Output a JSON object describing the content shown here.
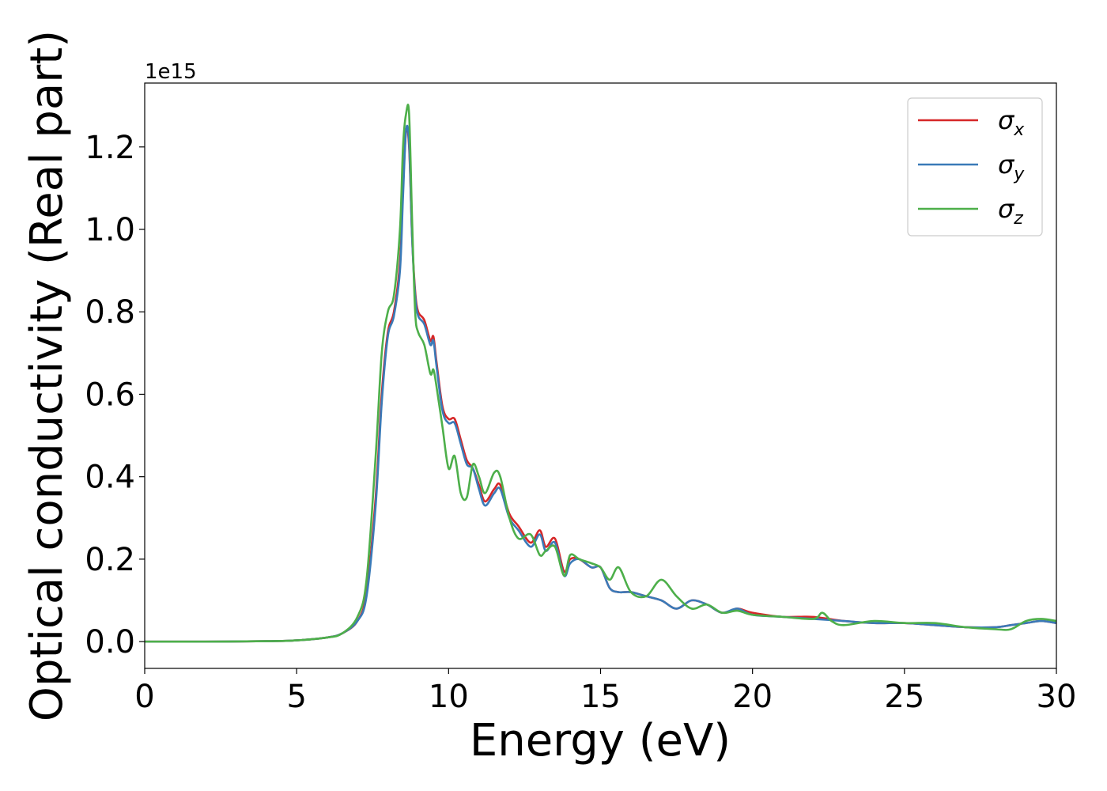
{
  "chart_data": {
    "type": "line",
    "xlabel": "Energy (eV)",
    "ylabel": "Optical conductivity (Real part)",
    "y_offset_label": "1e15",
    "xlim": [
      0,
      30
    ],
    "ylim": [
      -0.065,
      1.355
    ],
    "xticks": [
      0,
      5,
      10,
      15,
      20,
      25,
      30
    ],
    "yticks": [
      0.0,
      0.2,
      0.4,
      0.6,
      0.8,
      1.0,
      1.2
    ],
    "xtick_labels": [
      "0",
      "5",
      "10",
      "15",
      "20",
      "25",
      "30"
    ],
    "ytick_labels": [
      "0.0",
      "0.2",
      "0.4",
      "0.6",
      "0.8",
      "1.0",
      "1.2"
    ],
    "grid": false,
    "legend_position": "top-right",
    "series": [
      {
        "name": "σx",
        "legend_base": "σ",
        "legend_sub": "x",
        "color": "#d62728",
        "x": [
          0,
          2,
          4,
          5,
          6,
          6.5,
          7,
          7.3,
          7.6,
          7.8,
          8.0,
          8.2,
          8.4,
          8.5,
          8.6,
          8.7,
          8.8,
          8.9,
          9.0,
          9.2,
          9.4,
          9.5,
          9.6,
          9.8,
          10.0,
          10.2,
          10.4,
          10.6,
          10.8,
          11.0,
          11.2,
          11.5,
          11.7,
          12.0,
          12.3,
          12.7,
          13.0,
          13.2,
          13.5,
          13.8,
          14.0,
          14.3,
          14.7,
          15.0,
          15.3,
          15.6,
          16.0,
          16.5,
          17.0,
          17.5,
          18.0,
          18.5,
          19.0,
          19.5,
          20.0,
          21.0,
          22.0,
          23.0,
          24.0,
          25.0,
          26.0,
          27.0,
          28.0,
          28.5,
          29.0,
          29.5,
          30.0
        ],
        "y": [
          0.0,
          0.0,
          0.001,
          0.003,
          0.01,
          0.02,
          0.05,
          0.12,
          0.35,
          0.6,
          0.75,
          0.8,
          0.92,
          1.1,
          1.24,
          1.2,
          0.98,
          0.85,
          0.8,
          0.78,
          0.73,
          0.74,
          0.68,
          0.57,
          0.54,
          0.54,
          0.49,
          0.44,
          0.42,
          0.38,
          0.34,
          0.37,
          0.38,
          0.31,
          0.28,
          0.24,
          0.27,
          0.23,
          0.25,
          0.17,
          0.2,
          0.2,
          0.18,
          0.18,
          0.13,
          0.12,
          0.12,
          0.11,
          0.1,
          0.08,
          0.1,
          0.09,
          0.07,
          0.08,
          0.07,
          0.06,
          0.06,
          0.05,
          0.045,
          0.045,
          0.04,
          0.035,
          0.035,
          0.04,
          0.045,
          0.05,
          0.045
        ]
      },
      {
        "name": "σy",
        "legend_base": "σ",
        "legend_sub": "y",
        "color": "#3a7ab8",
        "x": [
          0,
          2,
          4,
          5,
          6,
          6.5,
          7,
          7.3,
          7.6,
          7.8,
          8.0,
          8.2,
          8.4,
          8.5,
          8.6,
          8.7,
          8.8,
          8.9,
          9.0,
          9.2,
          9.4,
          9.5,
          9.6,
          9.8,
          10.0,
          10.2,
          10.4,
          10.6,
          10.8,
          11.0,
          11.2,
          11.5,
          11.7,
          12.0,
          12.3,
          12.7,
          13.0,
          13.2,
          13.5,
          13.8,
          14.0,
          14.3,
          14.7,
          15.0,
          15.3,
          15.6,
          16.0,
          16.5,
          17.0,
          17.5,
          18.0,
          18.5,
          19.0,
          19.5,
          20.0,
          21.0,
          22.0,
          23.0,
          24.0,
          25.0,
          26.0,
          27.0,
          28.0,
          28.5,
          29.0,
          29.5,
          30.0
        ],
        "y": [
          0.0,
          0.0,
          0.001,
          0.003,
          0.01,
          0.02,
          0.05,
          0.11,
          0.33,
          0.58,
          0.74,
          0.79,
          0.9,
          1.08,
          1.24,
          1.21,
          0.98,
          0.84,
          0.79,
          0.77,
          0.72,
          0.73,
          0.67,
          0.56,
          0.53,
          0.53,
          0.48,
          0.43,
          0.42,
          0.37,
          0.33,
          0.36,
          0.37,
          0.3,
          0.27,
          0.23,
          0.26,
          0.22,
          0.24,
          0.16,
          0.19,
          0.2,
          0.18,
          0.18,
          0.13,
          0.12,
          0.12,
          0.11,
          0.1,
          0.08,
          0.1,
          0.09,
          0.07,
          0.08,
          0.065,
          0.06,
          0.055,
          0.05,
          0.045,
          0.045,
          0.04,
          0.035,
          0.035,
          0.04,
          0.045,
          0.05,
          0.045
        ]
      },
      {
        "name": "σz",
        "legend_base": "σ",
        "legend_sub": "z",
        "color": "#4daf4a",
        "x": [
          0,
          2,
          4,
          5,
          6,
          6.5,
          7,
          7.3,
          7.6,
          7.8,
          8.0,
          8.2,
          8.4,
          8.5,
          8.6,
          8.7,
          8.8,
          8.9,
          9.0,
          9.2,
          9.4,
          9.5,
          9.6,
          9.8,
          10.0,
          10.2,
          10.4,
          10.6,
          10.8,
          11.0,
          11.2,
          11.5,
          11.7,
          12.0,
          12.3,
          12.7,
          13.0,
          13.2,
          13.5,
          13.8,
          14.0,
          14.3,
          14.7,
          15.0,
          15.3,
          15.6,
          16.0,
          16.5,
          17.0,
          17.5,
          18.0,
          18.5,
          19.0,
          19.5,
          20.0,
          21.0,
          22.0,
          22.3,
          22.6,
          23.0,
          24.0,
          25.0,
          26.0,
          27.0,
          28.0,
          28.5,
          29.0,
          29.5,
          30.0
        ],
        "y": [
          0.0,
          0.0,
          0.001,
          0.003,
          0.01,
          0.02,
          0.06,
          0.15,
          0.45,
          0.7,
          0.8,
          0.84,
          1.0,
          1.2,
          1.28,
          1.28,
          1.02,
          0.8,
          0.75,
          0.72,
          0.65,
          0.66,
          0.62,
          0.52,
          0.42,
          0.45,
          0.36,
          0.35,
          0.43,
          0.4,
          0.36,
          0.41,
          0.4,
          0.3,
          0.25,
          0.26,
          0.21,
          0.22,
          0.23,
          0.16,
          0.21,
          0.2,
          0.19,
          0.18,
          0.15,
          0.18,
          0.12,
          0.11,
          0.15,
          0.11,
          0.08,
          0.09,
          0.07,
          0.075,
          0.065,
          0.06,
          0.055,
          0.07,
          0.05,
          0.04,
          0.05,
          0.045,
          0.045,
          0.035,
          0.03,
          0.03,
          0.05,
          0.055,
          0.05
        ]
      }
    ]
  }
}
